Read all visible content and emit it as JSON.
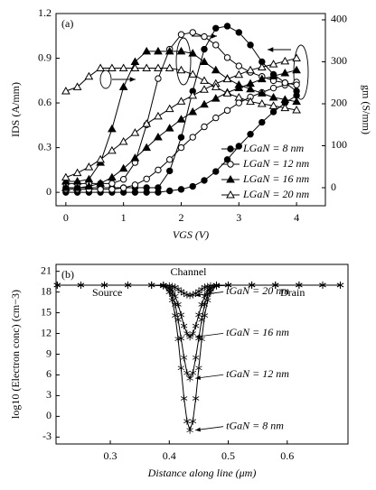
{
  "chart_data": [
    {
      "type": "line",
      "annotation": "(a)",
      "x_label": "VGS (V)",
      "y_label": "IDS (A/mm)",
      "y2_label": "gm (S/mm)",
      "xlim": [
        -0.17,
        4.5
      ],
      "xticks": [
        0,
        1,
        2,
        3,
        4
      ],
      "ylim": [
        -0.09,
        1.2
      ],
      "yticks": [
        0,
        0.3,
        0.6,
        0.9,
        1.2
      ],
      "y2lim": [
        -43,
        415
      ],
      "y2ticks": [
        0,
        100,
        200,
        300,
        400
      ],
      "legend": "lower right",
      "color": "#000000",
      "x": [
        0,
        0.2,
        0.4,
        0.6,
        0.8,
        1,
        1.2,
        1.4,
        1.6,
        1.8,
        2,
        2.2,
        2.4,
        2.6,
        2.8,
        3,
        3.2,
        3.4,
        3.6,
        3.8,
        4
      ],
      "series": [
        {
          "name": "LGaN = 8 nm",
          "marker": "circle",
          "filled": true,
          "values": [
            0,
            0,
            0,
            0,
            0,
            0,
            0,
            0,
            0,
            0.01,
            0.02,
            0.04,
            0.08,
            0.14,
            0.22,
            0.31,
            0.39,
            0.47,
            0.54,
            0.6,
            0.65
          ],
          "y2_values": [
            0,
            0,
            0,
            0,
            0,
            0,
            0,
            0,
            0,
            40,
            120,
            230,
            330,
            380,
            385,
            370,
            340,
            300,
            270,
            250,
            230
          ]
        },
        {
          "name": "LGaN = 12 nm",
          "marker": "circle",
          "filled": false,
          "values": [
            0.02,
            0.02,
            0.02,
            0.02,
            0.02,
            0.03,
            0.05,
            0.09,
            0.15,
            0.22,
            0.3,
            0.37,
            0.44,
            0.5,
            0.55,
            0.6,
            0.64,
            0.67,
            0.7,
            0.72,
            0.74
          ],
          "y2_values": [
            10,
            10,
            10,
            10,
            10,
            20,
            60,
            150,
            260,
            330,
            365,
            370,
            360,
            340,
            310,
            290,
            275,
            265,
            255,
            250,
            245
          ]
        },
        {
          "name": "LGaN = 16 nm",
          "marker": "triangle",
          "filled": true,
          "values": [
            0.03,
            0.03,
            0.04,
            0.06,
            0.1,
            0.16,
            0.23,
            0.3,
            0.37,
            0.43,
            0.49,
            0.54,
            0.59,
            0.63,
            0.67,
            0.7,
            0.73,
            0.76,
            0.78,
            0.8,
            0.82
          ],
          "y2_values": [
            15,
            15,
            20,
            60,
            140,
            240,
            300,
            325,
            325,
            325,
            325,
            320,
            300,
            280,
            260,
            245,
            235,
            225,
            215,
            210,
            205
          ]
        },
        {
          "name": "LGaN = 20 nm",
          "marker": "triangle",
          "filled": false,
          "values": [
            0.1,
            0.13,
            0.17,
            0.22,
            0.28,
            0.34,
            0.4,
            0.46,
            0.51,
            0.56,
            0.61,
            0.65,
            0.69,
            0.73,
            0.76,
            0.79,
            0.82,
            0.84,
            0.86,
            0.88,
            0.9
          ],
          "y2_values": [
            230,
            240,
            265,
            285,
            285,
            285,
            285,
            285,
            285,
            285,
            280,
            270,
            255,
            240,
            225,
            215,
            205,
            200,
            195,
            190,
            185
          ]
        }
      ]
    },
    {
      "type": "line",
      "annotation": "(b)",
      "texts": [
        "Channel",
        "Source",
        "Drain"
      ],
      "x_label": "Distance along line (μm)",
      "y_label": "log10 (Electron conc) (cm−3)",
      "xlim": [
        0.208,
        0.703
      ],
      "xticks": [
        0.3,
        0.4,
        0.5,
        0.6
      ],
      "ylim": [
        -4,
        22
      ],
      "yticks": [
        21,
        18,
        15,
        12,
        9,
        6,
        3,
        0,
        -3
      ],
      "color": "#000000",
      "x": [
        0.21,
        0.25,
        0.29,
        0.33,
        0.37,
        0.39,
        0.4,
        0.405,
        0.41,
        0.415,
        0.42,
        0.425,
        0.43,
        0.435,
        0.44,
        0.445,
        0.45,
        0.455,
        0.46,
        0.465,
        0.47,
        0.48,
        0.5,
        0.54,
        0.58,
        0.62,
        0.66,
        0.69
      ],
      "series": [
        {
          "name": "tGaN = 20 nm",
          "marker": "asterisk",
          "values": [
            19,
            19,
            19,
            19,
            19,
            19,
            18.9,
            18.8,
            18.7,
            18.4,
            18.1,
            17.8,
            17.6,
            17.5,
            17.6,
            17.8,
            18.1,
            18.4,
            18.7,
            18.8,
            18.9,
            19,
            19,
            19,
            19,
            19,
            19,
            19
          ]
        },
        {
          "name": "tGaN = 16 nm",
          "marker": "asterisk",
          "values": [
            19,
            19,
            19,
            19,
            19,
            19,
            18.6,
            18.2,
            17.4,
            16.2,
            14.7,
            13.1,
            12,
            11.5,
            12,
            13.1,
            14.7,
            16.2,
            17.4,
            18.2,
            18.6,
            19,
            19,
            19,
            19,
            19,
            19,
            19
          ]
        },
        {
          "name": "tGaN = 12 nm",
          "marker": "asterisk",
          "values": [
            19,
            19,
            19,
            19,
            19,
            18.9,
            18.4,
            17.6,
            16.2,
            14,
            11.3,
            8.5,
            6.3,
            5.5,
            6.3,
            8.5,
            11.3,
            14,
            16.2,
            17.6,
            18.4,
            18.9,
            19,
            19,
            19,
            19,
            19,
            19
          ]
        },
        {
          "name": "tGaN = 8 nm",
          "marker": "asterisk",
          "values": [
            19,
            19,
            19,
            19,
            19,
            18.9,
            18,
            16.8,
            14.6,
            11.2,
            7,
            2.6,
            -0.7,
            -2,
            -0.7,
            2.6,
            7,
            11.2,
            14.6,
            16.8,
            18,
            18.9,
            19,
            19,
            19,
            19,
            19,
            19
          ]
        }
      ]
    }
  ]
}
